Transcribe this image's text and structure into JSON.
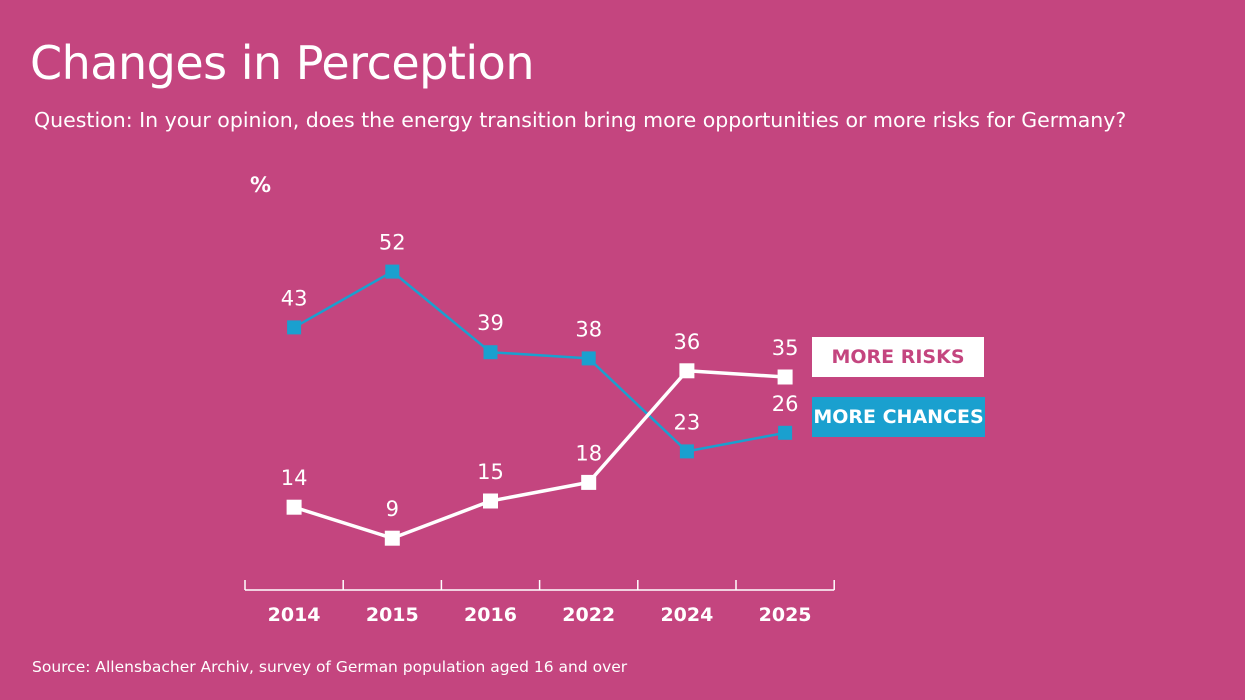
{
  "colors": {
    "background": "#c4457f",
    "chances": "#1aa0cf",
    "risks": "#ffffff",
    "risks_legend_text": "#c4457f"
  },
  "header": {
    "title": "Changes in Perception",
    "subtitle": "Question: In your opinion, does the energy transition bring more opportunities or more risks for Germany?"
  },
  "footer": {
    "source": "Source: Allensbacher Archiv, survey of German population aged 16 and over"
  },
  "chart_data": {
    "type": "line",
    "title": "Changes in Perception",
    "subtitle": "Question: In your opinion, does the energy transition bring more opportunities or more risks for Germany?",
    "ylabel": "%",
    "xlabel": "",
    "ylim": [
      0,
      60
    ],
    "grid": false,
    "categories": [
      "2014",
      "2015",
      "2016",
      "2022",
      "2024",
      "2025"
    ],
    "series": [
      {
        "name": "MORE CHANCES",
        "values": [
          43,
          52,
          39,
          38,
          23,
          26
        ],
        "color": "#1aa0cf"
      },
      {
        "name": "MORE RISKS",
        "values": [
          14,
          9,
          15,
          18,
          36,
          35
        ],
        "color": "#ffffff"
      }
    ],
    "legend": [
      "MORE RISKS",
      "MORE CHANCES"
    ],
    "legend_position": "right"
  }
}
